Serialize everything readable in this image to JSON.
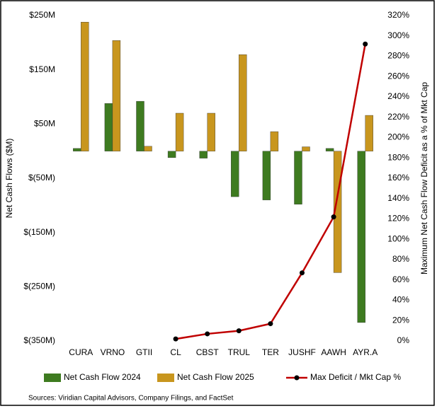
{
  "chart_data": {
    "type": "bar",
    "y_label": "Net Cash Flows ($M)",
    "y2_label": "Maximum Net Cash Flow Deficit as a % of Mkt Cap",
    "source": "Sources: Viridian Capital Advisors, Company Filings, and  FactSet",
    "categories": [
      "CURA",
      "VRNO",
      "GTII",
      "CL",
      "CBST",
      "TRUL",
      "TER",
      "JUSHF",
      "AAWH",
      "AYR.A"
    ],
    "series": [
      {
        "name": "Net Cash Flow 2024",
        "color": "#3e7b20",
        "values": [
          5,
          88,
          92,
          -12,
          -13,
          -84,
          -90,
          -98,
          5,
          -316
        ]
      },
      {
        "name": "Net Cash Flow 2025",
        "color": "#c8961e",
        "values": [
          238,
          204,
          9,
          70,
          70,
          178,
          36,
          8,
          -224,
          66
        ]
      },
      {
        "name": "Max Deficit / Mkt Cap %",
        "color": "#c00000",
        "type": "line",
        "axis": "y2",
        "values": [
          null,
          null,
          null,
          2,
          7,
          10,
          17,
          67,
          122,
          292
        ]
      }
    ],
    "ylim": [
      -350,
      250
    ],
    "yticks": [
      {
        "value": 250,
        "label": "$250M"
      },
      {
        "value": 150,
        "label": "$150M"
      },
      {
        "value": 50,
        "label": "$50M"
      },
      {
        "value": -50,
        "label": "$(50M)"
      },
      {
        "value": -150,
        "label": "$(150M)"
      },
      {
        "value": -250,
        "label": "$(250M)"
      },
      {
        "value": -350,
        "label": "$(350M)"
      }
    ],
    "y2lim": [
      0,
      320
    ],
    "y2ticks": [
      {
        "value": 0,
        "label": "0%"
      },
      {
        "value": 20,
        "label": "20%"
      },
      {
        "value": 40,
        "label": "40%"
      },
      {
        "value": 60,
        "label": "60%"
      },
      {
        "value": 80,
        "label": "80%"
      },
      {
        "value": 100,
        "label": "100%"
      },
      {
        "value": 120,
        "label": "120%"
      },
      {
        "value": 140,
        "label": "140%"
      },
      {
        "value": 160,
        "label": "160%"
      },
      {
        "value": 180,
        "label": "180%"
      },
      {
        "value": 200,
        "label": "200%"
      },
      {
        "value": 220,
        "label": "220%"
      },
      {
        "value": 240,
        "label": "240%"
      },
      {
        "value": 260,
        "label": "260%"
      },
      {
        "value": 280,
        "label": "280%"
      },
      {
        "value": 300,
        "label": "300%"
      },
      {
        "value": 320,
        "label": "320%"
      }
    ],
    "legend": "bottom"
  }
}
